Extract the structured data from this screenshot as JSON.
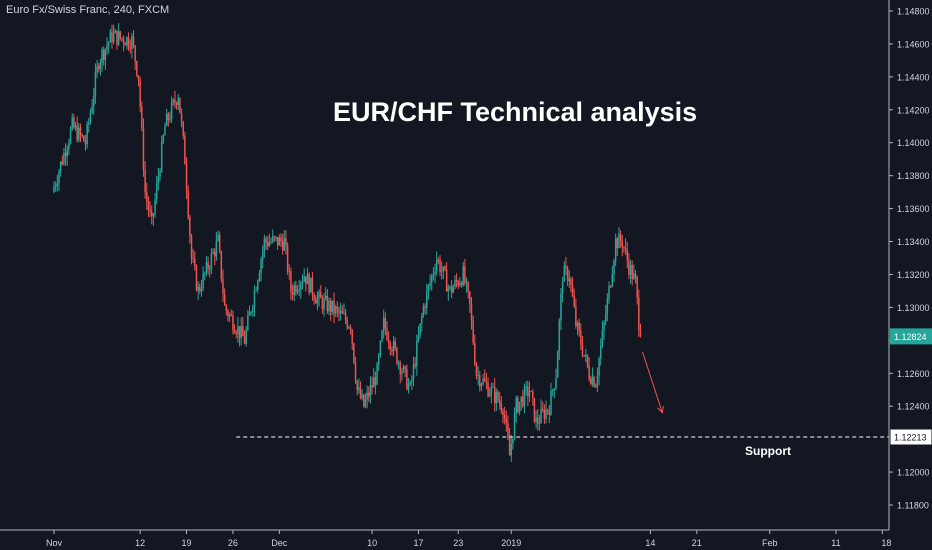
{
  "symbol_label": "Euro Fx/Swiss Franc, 240, FXCM",
  "chart_data": {
    "type": "candlestick",
    "title": "EUR/CHF Technical analysis",
    "instrument": "Euro Fx/Swiss Franc",
    "timeframe": "240",
    "source": "FXCM",
    "y_ticks": [
      "1.14800",
      "1.14600",
      "1.14400",
      "1.14200",
      "1.14000",
      "1.13800",
      "1.13600",
      "1.13400",
      "1.13200",
      "1.13000",
      "1.12800",
      "1.12600",
      "1.12400",
      "1.12200",
      "1.12000",
      "1.11800"
    ],
    "ylim": [
      1.1175,
      1.1485
    ],
    "x_ticks": [
      "Nov",
      "12",
      "19",
      "26",
      "Dec",
      "10",
      "17",
      "23",
      "2019",
      "14",
      "21",
      "Feb",
      "11",
      "18"
    ],
    "x_tick_positions": [
      0,
      13,
      20,
      27,
      34,
      48,
      55,
      61,
      69,
      90,
      97,
      108,
      118,
      125
    ],
    "x_total_days": 126,
    "candle_days": 87.5,
    "last_price": {
      "label": "1.12824",
      "value": 1.12824,
      "color": "#26a69a"
    },
    "support": {
      "label": "1.12213",
      "value": 1.12213,
      "text": "Support",
      "day_start": 27.5
    },
    "arrow": {
      "from": [
        88.8,
        1.1273
      ],
      "to": [
        91.8,
        1.1236
      ],
      "color": "#ef5350"
    },
    "trend_path": [
      [
        0,
        1.137
      ],
      [
        3,
        1.141
      ],
      [
        5,
        1.14
      ],
      [
        7,
        1.145
      ],
      [
        9,
        1.1465
      ],
      [
        12,
        1.1462
      ],
      [
        13,
        1.144
      ],
      [
        14,
        1.137
      ],
      [
        15,
        1.135
      ],
      [
        17,
        1.141
      ],
      [
        19,
        1.143
      ],
      [
        20,
        1.139
      ],
      [
        21,
        1.133
      ],
      [
        22,
        1.131
      ],
      [
        25,
        1.134
      ],
      [
        26,
        1.13
      ],
      [
        29,
        1.128
      ],
      [
        30,
        1.13
      ],
      [
        32,
        1.134
      ],
      [
        35,
        1.134
      ],
      [
        36,
        1.131
      ],
      [
        38,
        1.132
      ],
      [
        40,
        1.1305
      ],
      [
        42,
        1.13
      ],
      [
        45,
        1.129
      ],
      [
        46,
        1.125
      ],
      [
        47,
        1.124
      ],
      [
        49,
        1.126
      ],
      [
        50,
        1.129
      ],
      [
        52,
        1.127
      ],
      [
        54,
        1.125
      ],
      [
        56,
        1.13
      ],
      [
        58,
        1.133
      ],
      [
        60,
        1.131
      ],
      [
        62,
        1.132
      ],
      [
        63,
        1.13
      ],
      [
        64,
        1.126
      ],
      [
        66,
        1.125
      ],
      [
        68,
        1.124
      ],
      [
        69,
        1.121
      ],
      [
        70,
        1.124
      ],
      [
        72,
        1.125
      ],
      [
        73,
        1.123
      ],
      [
        75,
        1.124
      ],
      [
        76,
        1.126
      ],
      [
        77,
        1.132
      ],
      [
        78,
        1.132
      ],
      [
        79,
        1.129
      ],
      [
        81,
        1.126
      ],
      [
        82,
        1.1255
      ],
      [
        84,
        1.131
      ],
      [
        85,
        1.134
      ],
      [
        86,
        1.134
      ],
      [
        87,
        1.1325
      ],
      [
        88,
        1.1315
      ],
      [
        88.7,
        1.12824
      ]
    ],
    "colors": {
      "up": "#26a69a",
      "down": "#ef5350",
      "background": "#131722",
      "text": "#d1d4dc"
    },
    "grid": false
  }
}
